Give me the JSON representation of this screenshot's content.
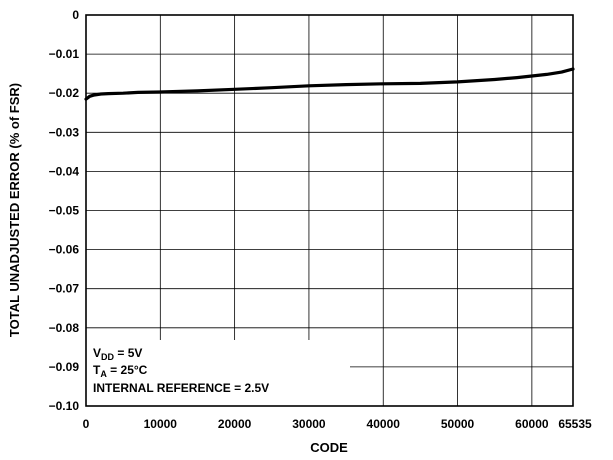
{
  "chart_data": {
    "type": "line",
    "xlabel": "CODE",
    "ylabel": "TOTAL UNADJUSTED ERROR (% of FSR)",
    "xlim": [
      0,
      65535
    ],
    "ylim": [
      -0.1,
      0
    ],
    "x_ticks": [
      0,
      10000,
      20000,
      30000,
      40000,
      50000,
      60000,
      65535
    ],
    "x_tick_labels": [
      "0",
      "10000",
      "20000",
      "30000",
      "40000",
      "50000",
      "60000",
      "65535"
    ],
    "y_ticks": [
      0,
      -0.01,
      -0.02,
      -0.03,
      -0.04,
      -0.05,
      -0.06,
      -0.07,
      -0.08,
      -0.09,
      -0.1
    ],
    "y_tick_labels": [
      "0",
      "−0.01",
      "−0.02",
      "−0.03",
      "−0.04",
      "−0.05",
      "−0.06",
      "−0.07",
      "−0.08",
      "−0.09",
      "−0.10"
    ],
    "grid": true,
    "series": [
      {
        "color": "#000000",
        "x": [
          0,
          500,
          1000,
          2000,
          3000,
          5000,
          7000,
          10000,
          15000,
          20000,
          25000,
          30000,
          35000,
          40000,
          45000,
          50000,
          55000,
          58000,
          60000,
          62000,
          64000,
          65535
        ],
        "y": [
          -0.0215,
          -0.0208,
          -0.0205,
          -0.0202,
          -0.0201,
          -0.02,
          -0.0198,
          -0.0197,
          -0.0194,
          -0.019,
          -0.0186,
          -0.0181,
          -0.0178,
          -0.0176,
          -0.0175,
          -0.0171,
          -0.0165,
          -0.016,
          -0.0156,
          -0.0152,
          -0.0146,
          -0.0138
        ]
      }
    ],
    "annotation": {
      "vdd": {
        "main": "V",
        "sub": "DD",
        "rest": " = 5V"
      },
      "ta": {
        "main": "T",
        "sub": "A",
        "rest": " = 25°C"
      },
      "ref": "INTERNAL REFERENCE = 2.5V"
    }
  }
}
